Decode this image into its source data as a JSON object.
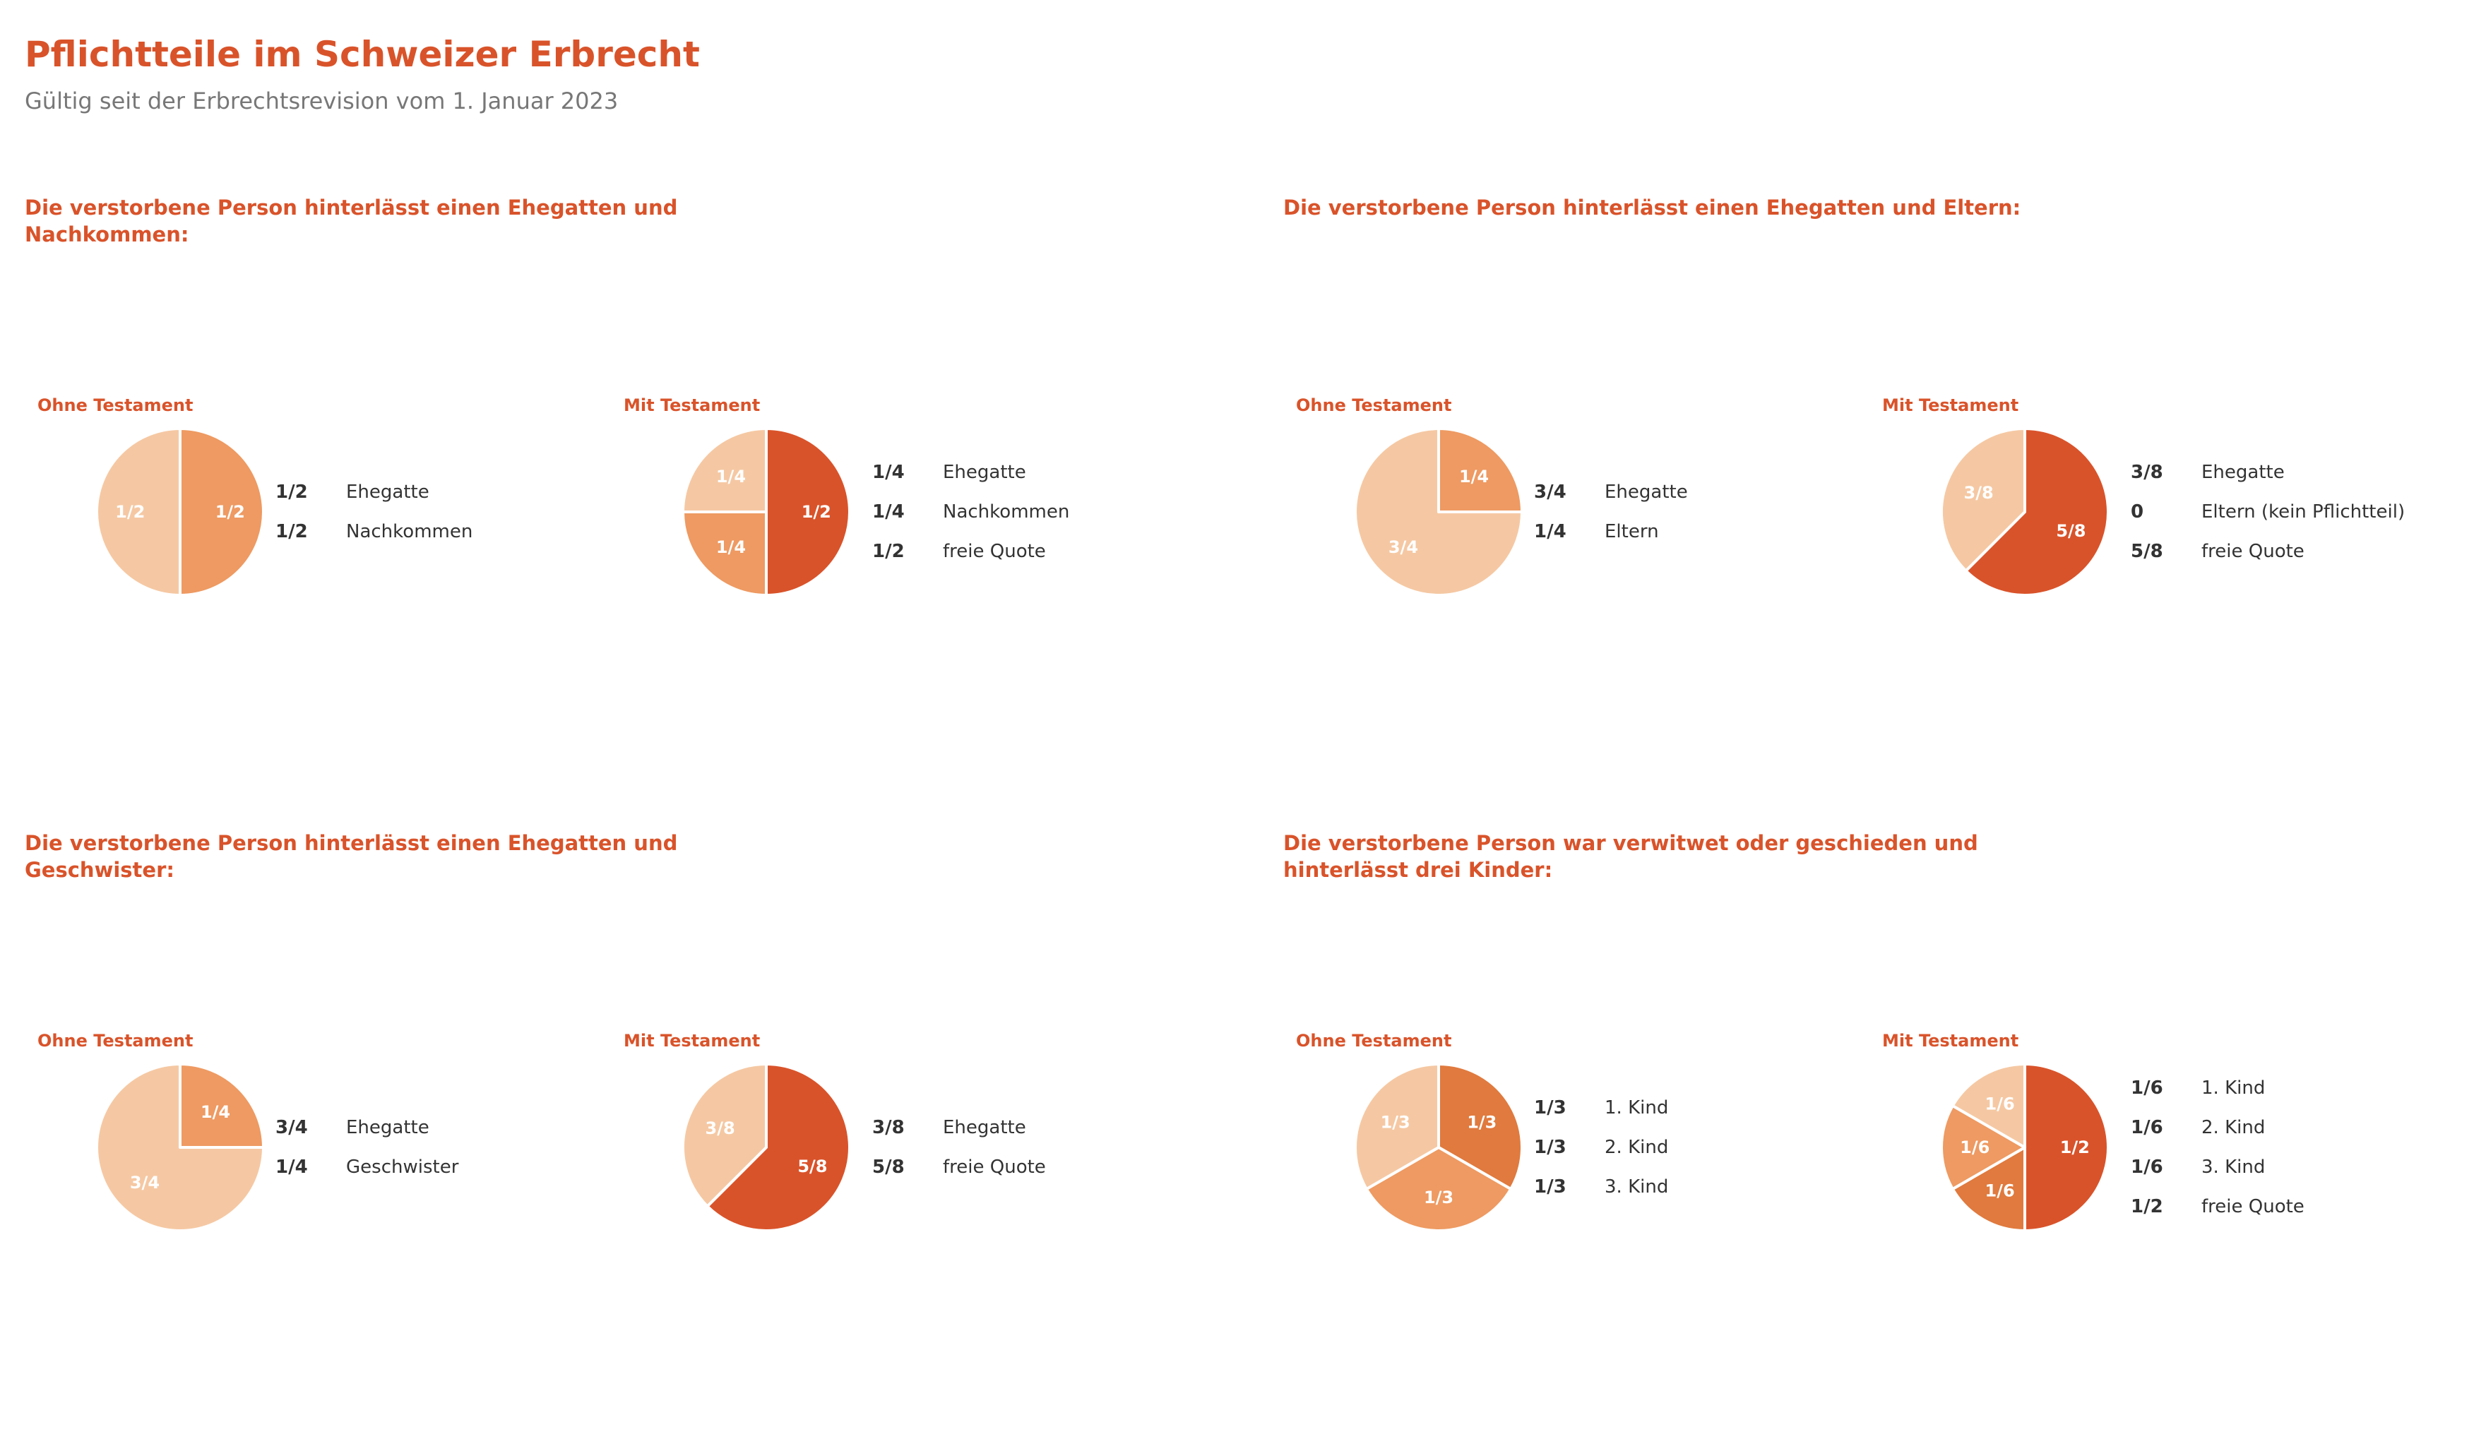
{
  "title": "Pflichtteile im Schweizer Erbrecht",
  "subtitle": "Gültig seit der Erbrechtsrevision vom 1. Januar 2023",
  "colors": {
    "accent": "#d9532a",
    "slice_dark": "#d9532a",
    "slice_medium": "#e07a3e",
    "slice_light": "#ee9a62",
    "slice_pale": "#f5c8a3",
    "text": "#333333",
    "subtitle": "#777777"
  },
  "sections": [
    {
      "heading": "Die verstorbene Person hinterlässt einen Ehegatten und Nachkommen:",
      "charts": [
        {
          "title": "Ohne Testament",
          "chart_data": {
            "type": "pie",
            "slices": [
              {
                "label": "Ehegatte",
                "fraction": "1/2",
                "value": 0.5,
                "color": "#ee9a62"
              },
              {
                "label": "Nachkommen",
                "fraction": "1/2",
                "value": 0.5,
                "color": "#f5c8a3"
              }
            ]
          }
        },
        {
          "title": "Mit Testament",
          "chart_data": {
            "type": "pie",
            "slices": [
              {
                "label": "freie Quote",
                "fraction": "1/2",
                "value": 0.5,
                "color": "#d9532a"
              },
              {
                "label": "Nachkommen",
                "fraction": "1/4",
                "value": 0.25,
                "color": "#ee9a62"
              },
              {
                "label": "Ehegatte",
                "fraction": "1/4",
                "value": 0.25,
                "color": "#f5c8a3"
              }
            ]
          },
          "legend": [
            {
              "value": "1/4",
              "label": "Ehegatte"
            },
            {
              "value": "1/4",
              "label": "Nachkommen"
            },
            {
              "value": "1/2",
              "label": "freie Quote"
            }
          ]
        }
      ]
    },
    {
      "heading": "Die verstorbene Person hinterlässt einen Ehegatten und Eltern:",
      "charts": [
        {
          "title": "Ohne Testament",
          "chart_data": {
            "type": "pie",
            "slices": [
              {
                "label": "Eltern",
                "fraction": "1/4",
                "value": 0.25,
                "color": "#ee9a62"
              },
              {
                "label": "Ehegatte",
                "fraction": "3/4",
                "value": 0.75,
                "color": "#f5c8a3"
              }
            ]
          },
          "legend": [
            {
              "value": "3/4",
              "label": "Ehegatte"
            },
            {
              "value": "1/4",
              "label": "Eltern"
            }
          ]
        },
        {
          "title": "Mit Testament",
          "chart_data": {
            "type": "pie",
            "slices": [
              {
                "label": "freie Quote",
                "fraction": "5/8",
                "value": 0.625,
                "color": "#d9532a"
              },
              {
                "label": "Ehegatte",
                "fraction": "3/8",
                "value": 0.375,
                "color": "#f5c8a3"
              }
            ]
          },
          "legend": [
            {
              "value": "3/8",
              "label": "Ehegatte"
            },
            {
              "value": "0",
              "label": "Eltern (kein Pflichtteil)"
            },
            {
              "value": "5/8",
              "label": "freie Quote"
            }
          ]
        }
      ]
    },
    {
      "heading": "Die verstorbene Person hinterlässt einen Ehegatten und Geschwister:",
      "charts": [
        {
          "title": "Ohne Testament",
          "chart_data": {
            "type": "pie",
            "slices": [
              {
                "label": "Geschwister",
                "fraction": "1/4",
                "value": 0.25,
                "color": "#ee9a62"
              },
              {
                "label": "Ehegatte",
                "fraction": "3/4",
                "value": 0.75,
                "color": "#f5c8a3"
              }
            ]
          },
          "legend": [
            {
              "value": "3/4",
              "label": "Ehegatte"
            },
            {
              "value": "1/4",
              "label": "Geschwister"
            }
          ]
        },
        {
          "title": "Mit Testament",
          "chart_data": {
            "type": "pie",
            "slices": [
              {
                "label": "freie Quote",
                "fraction": "5/8",
                "value": 0.625,
                "color": "#d9532a"
              },
              {
                "label": "Ehegatte",
                "fraction": "3/8",
                "value": 0.375,
                "color": "#f5c8a3"
              }
            ]
          },
          "legend": [
            {
              "value": "3/8",
              "label": "Ehegatte"
            },
            {
              "value": "5/8",
              "label": "freie Quote"
            }
          ]
        }
      ]
    },
    {
      "heading": "Die verstorbene Person war verwitwet oder geschieden und hinterlässt drei Kinder:",
      "charts": [
        {
          "title": "Ohne Testament",
          "chart_data": {
            "type": "pie",
            "slices": [
              {
                "label": "1. Kind",
                "fraction": "1/3",
                "value": 0.3333,
                "color": "#e07a3e"
              },
              {
                "label": "2. Kind",
                "fraction": "1/3",
                "value": 0.3333,
                "color": "#ee9a62"
              },
              {
                "label": "3. Kind",
                "fraction": "1/3",
                "value": 0.3334,
                "color": "#f5c8a3"
              }
            ]
          }
        },
        {
          "title": "Mit Testament",
          "chart_data": {
            "type": "pie",
            "slices": [
              {
                "label": "freie Quote",
                "fraction": "1/2",
                "value": 0.5,
                "color": "#d9532a"
              },
              {
                "label": "1. Kind",
                "fraction": "1/6",
                "value": 0.1667,
                "color": "#e07a3e"
              },
              {
                "label": "2. Kind",
                "fraction": "1/6",
                "value": 0.1667,
                "color": "#ee9a62"
              },
              {
                "label": "3. Kind",
                "fraction": "1/6",
                "value": 0.1666,
                "color": "#f5c8a3"
              }
            ]
          },
          "legend": [
            {
              "value": "1/6",
              "label": "1. Kind"
            },
            {
              "value": "1/6",
              "label": "2. Kind"
            },
            {
              "value": "1/6",
              "label": "3. Kind"
            },
            {
              "value": "1/2",
              "label": "freie Quote"
            }
          ]
        }
      ]
    }
  ]
}
